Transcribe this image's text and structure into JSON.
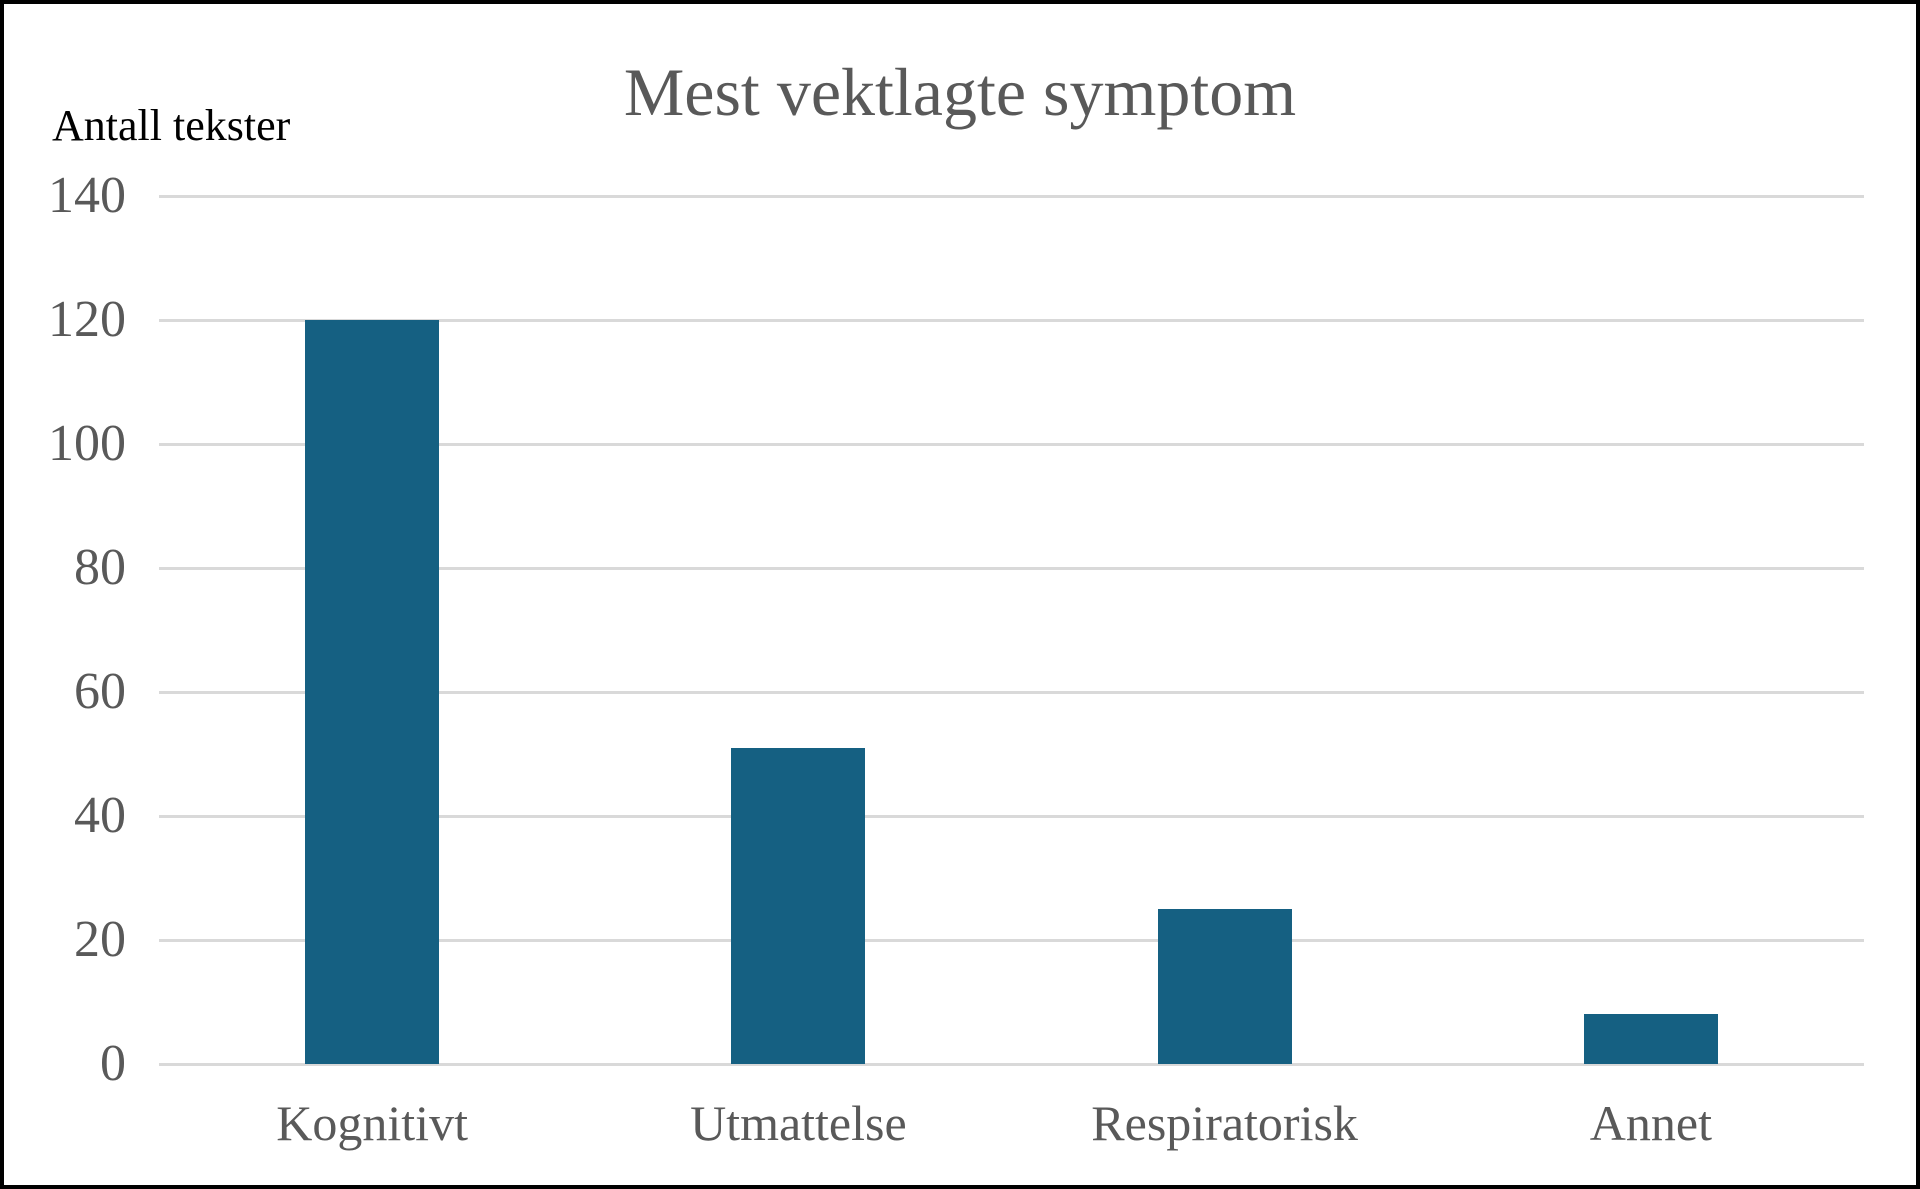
{
  "frame": {
    "background": "#ffffff",
    "border_color": "#000000"
  },
  "chart_data": {
    "type": "bar",
    "title": "Mest vektlagte symptom",
    "ylabel": "Antall tekster",
    "xlabel": "",
    "categories": [
      "Kognitivt",
      "Utmattelse",
      "Respiratorisk",
      "Annet"
    ],
    "values": [
      120,
      51,
      25,
      8
    ],
    "yticks": [
      0,
      20,
      40,
      60,
      80,
      100,
      120,
      140
    ],
    "ylim": [
      0,
      140
    ],
    "grid": "horizontal",
    "legend": "none",
    "bar_color": "#156082",
    "gridline_color": "#d9d9d9",
    "text_color": "#595959",
    "ylabel_color": "#000000"
  }
}
